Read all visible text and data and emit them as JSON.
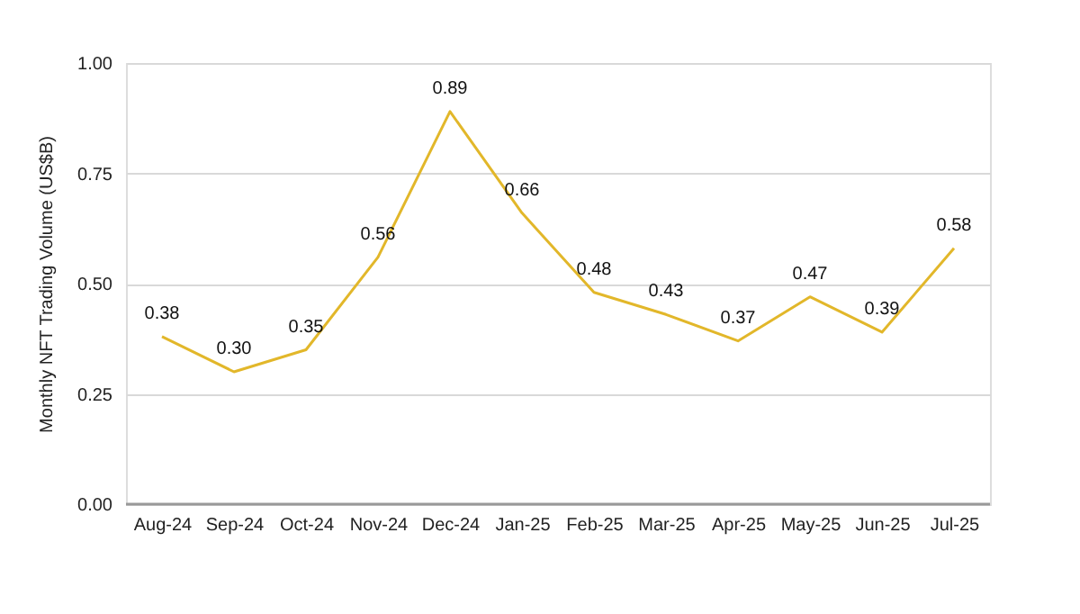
{
  "chart_data": {
    "type": "line",
    "ylabel": "Monthly NFT Trading Volume (US$B)",
    "categories": [
      "Aug-24",
      "Sep-24",
      "Oct-24",
      "Nov-24",
      "Dec-24",
      "Jan-25",
      "Feb-25",
      "Mar-25",
      "Apr-25",
      "May-25",
      "Jun-25",
      "Jul-25"
    ],
    "series": [
      {
        "color": "#e2b72a",
        "values": [
          0.38,
          0.3,
          0.35,
          0.56,
          0.89,
          0.66,
          0.48,
          0.43,
          0.37,
          0.47,
          0.39,
          0.58
        ],
        "value_labels": [
          "0.38",
          "0.30",
          "0.35",
          "0.56",
          "0.89",
          "0.66",
          "0.48",
          "0.43",
          "0.37",
          "0.47",
          "0.39",
          "0.58"
        ]
      }
    ],
    "ylim": [
      0,
      1
    ],
    "yticks": [
      {
        "value": 0,
        "label": "0.00"
      },
      0.25,
      {
        "value": 0.5,
        "label": "0.50"
      },
      0.75,
      {
        "value": 1,
        "label": "1.00"
      }
    ],
    "grid": "y",
    "marker": "none",
    "line_style": "solid"
  }
}
